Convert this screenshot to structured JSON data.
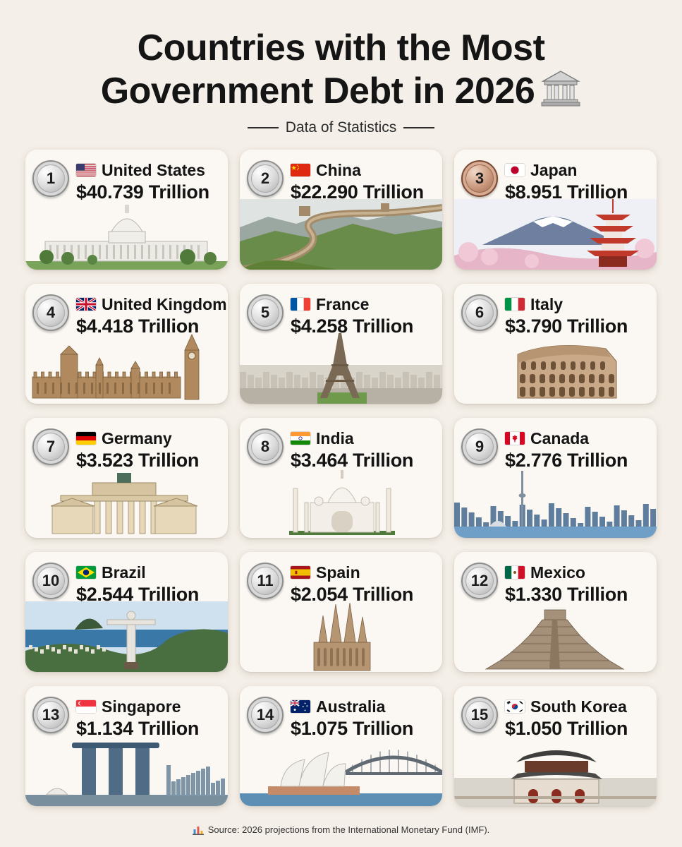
{
  "header": {
    "title_line1": "Countries with the Most",
    "title_line2": "Government Debt in 2026",
    "title_icon": "bank-icon",
    "subtitle": "Data of Statistics"
  },
  "countries": [
    {
      "rank": "1",
      "name": "United States",
      "amount": "$40.739 Trillion",
      "flag": "us-flag",
      "landmark": "us-capitol-icon"
    },
    {
      "rank": "2",
      "name": "China",
      "amount": "$22.290 Trillion",
      "flag": "china-flag",
      "landmark": "great-wall-icon"
    },
    {
      "rank": "3",
      "name": "Japan",
      "amount": "$8.951 Trillion",
      "flag": "japan-flag",
      "landmark": "mount-fuji-pagoda-icon"
    },
    {
      "rank": "4",
      "name": "United Kingdom",
      "amount": "$4.418 Trillion",
      "flag": "uk-flag",
      "landmark": "big-ben-parliament-icon"
    },
    {
      "rank": "5",
      "name": "France",
      "amount": "$4.258 Trillion",
      "flag": "france-flag",
      "landmark": "eiffel-tower-icon"
    },
    {
      "rank": "6",
      "name": "Italy",
      "amount": "$3.790 Trillion",
      "flag": "italy-flag",
      "landmark": "colosseum-icon"
    },
    {
      "rank": "7",
      "name": "Germany",
      "amount": "$3.523 Trillion",
      "flag": "germany-flag",
      "landmark": "brandenburg-gate-icon"
    },
    {
      "rank": "8",
      "name": "India",
      "amount": "$3.464 Trillion",
      "flag": "india-flag",
      "landmark": "taj-mahal-icon"
    },
    {
      "rank": "9",
      "name": "Canada",
      "amount": "$2.776 Trillion",
      "flag": "canada-flag",
      "landmark": "toronto-skyline-icon"
    },
    {
      "rank": "10",
      "name": "Brazil",
      "amount": "$2.544 Trillion",
      "flag": "brazil-flag",
      "landmark": "christ-the-redeemer-icon"
    },
    {
      "rank": "11",
      "name": "Spain",
      "amount": "$2.054 Trillion",
      "flag": "spain-flag",
      "landmark": "sagrada-familia-icon"
    },
    {
      "rank": "12",
      "name": "Mexico",
      "amount": "$1.330 Trillion",
      "flag": "mexico-flag",
      "landmark": "chichen-itza-pyramid-icon"
    },
    {
      "rank": "13",
      "name": "Singapore",
      "amount": "$1.134 Trillion",
      "flag": "singapore-flag",
      "landmark": "marina-bay-sands-icon"
    },
    {
      "rank": "14",
      "name": "Australia",
      "amount": "$1.075 Trillion",
      "flag": "australia-flag",
      "landmark": "sydney-opera-house-icon"
    },
    {
      "rank": "15",
      "name": "South Korea",
      "amount": "$1.050 Trillion",
      "flag": "south-korea-flag",
      "landmark": "gyeongbokgung-palace-icon"
    }
  ],
  "footer": {
    "icon": "bar-chart-icon",
    "source": "Source: 2026 projections from the International Monetary Fund (IMF)."
  },
  "colors": {
    "background": "#f4efe8",
    "card": "#fbf8f3",
    "text": "#141414",
    "medal_silver": "#c8c8c8",
    "medal_bronze": "#b98468"
  }
}
